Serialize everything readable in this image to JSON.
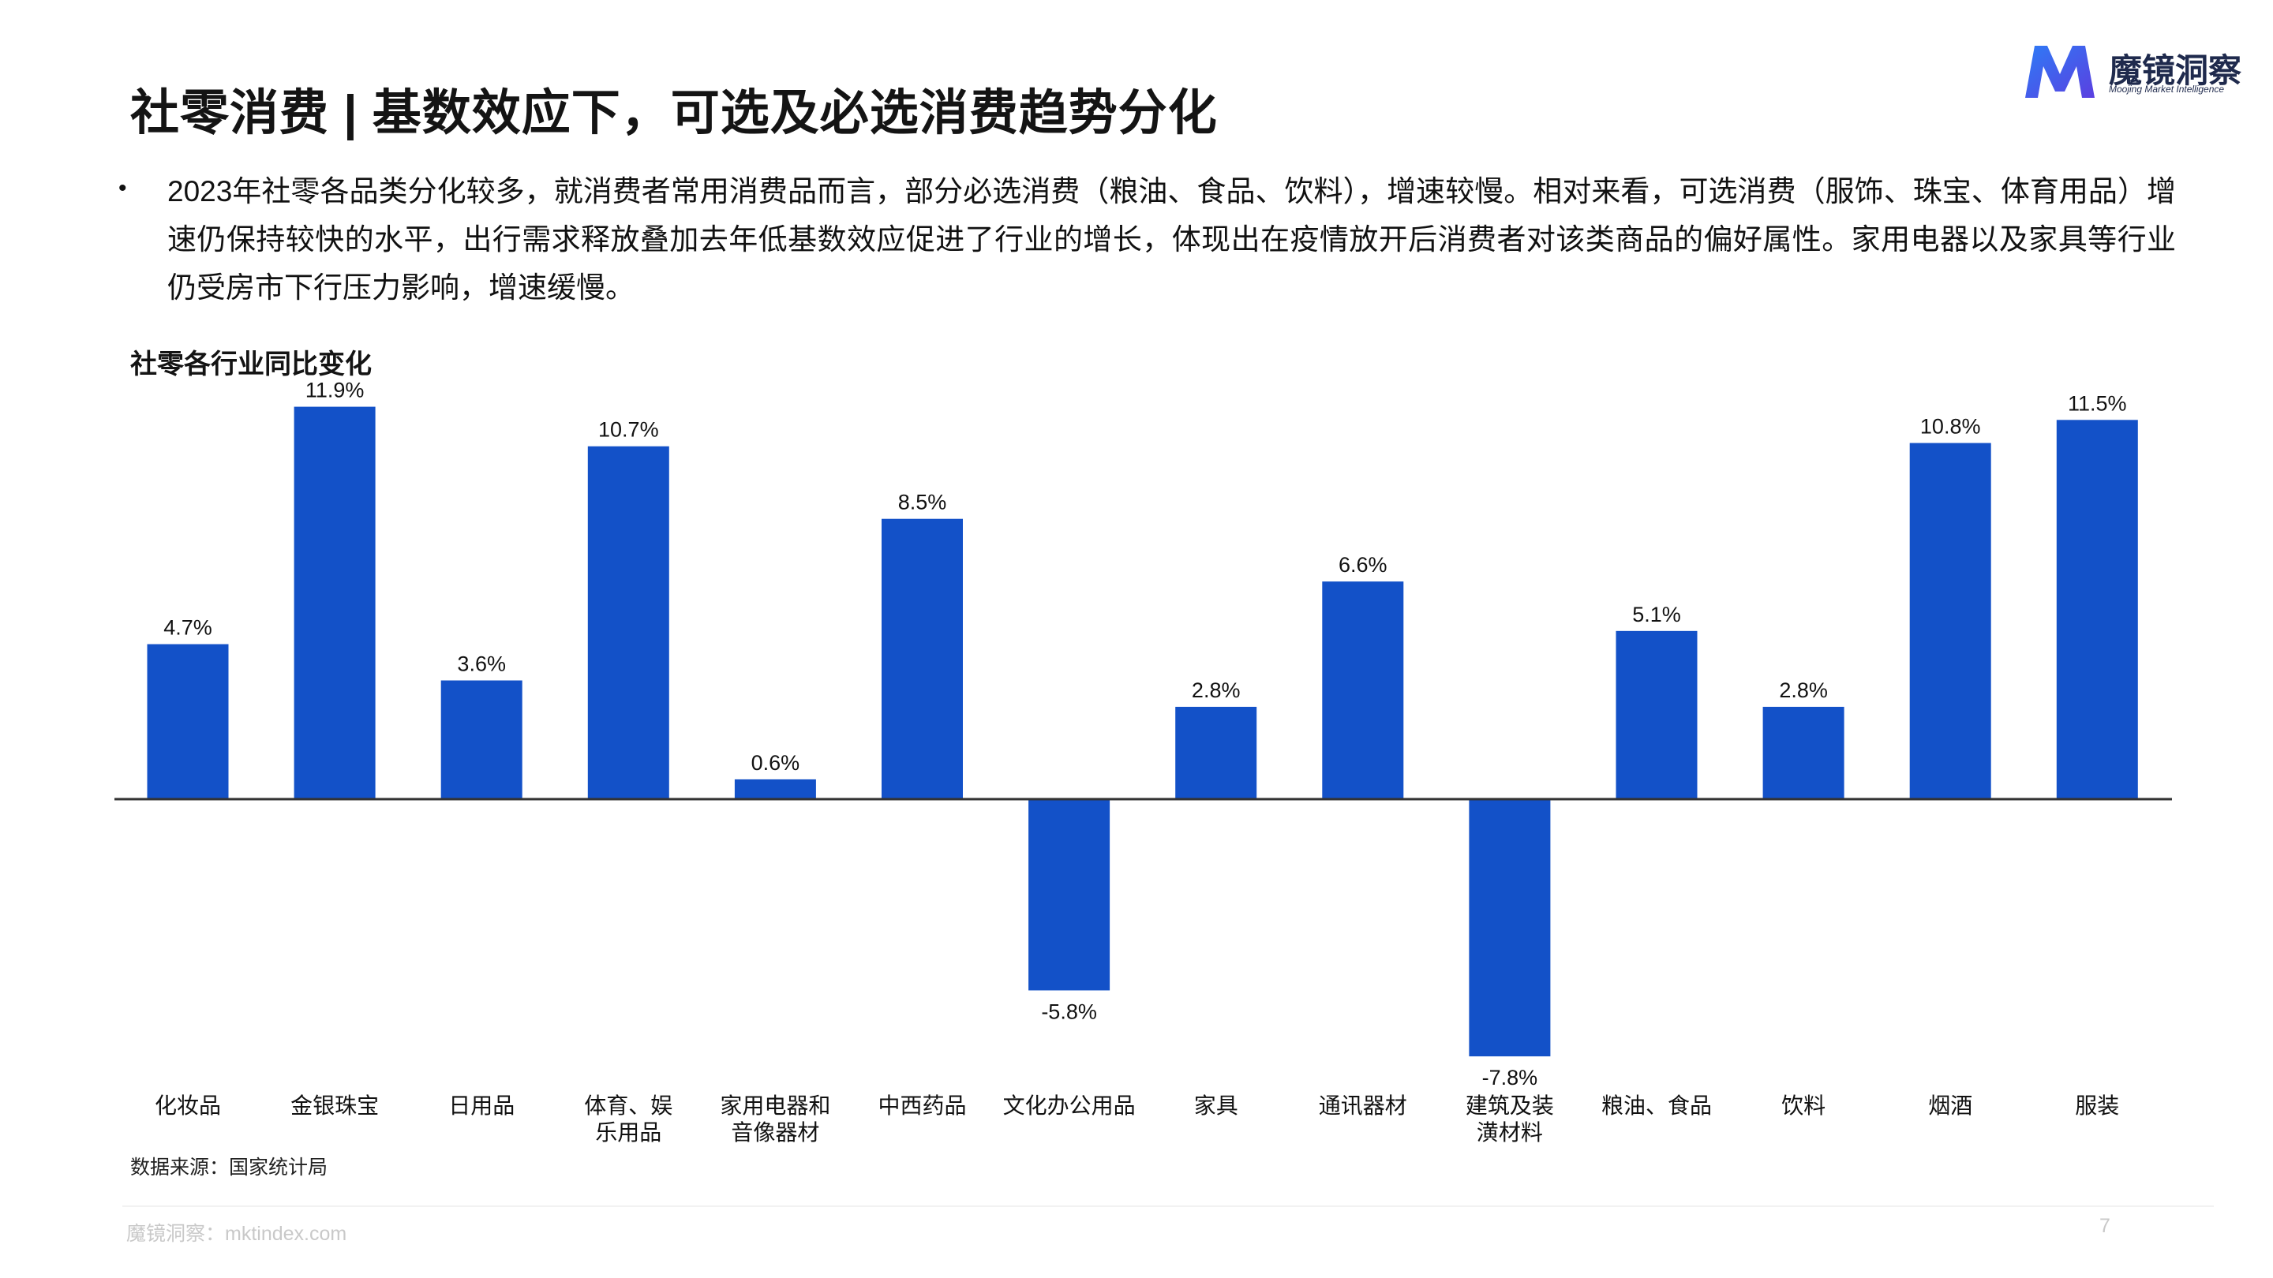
{
  "header": {
    "title": "社零消费 | 基数效应下，可选及必选消费趋势分化",
    "logo_name": "魔镜洞察",
    "logo_sub": "Moojing Market Intelligence"
  },
  "body": {
    "bullet": "•",
    "paragraph": "2023年社零各品类分化较多，就消费者常用消费品而言，部分必选消费（粮油、食品、饮料），增速较慢。相对来看，可选消费（服饰、珠宝、体育用品）增速仍保持较快的水平，出行需求释放叠加去年低基数效应促进了行业的增长，体现出在疫情放开后消费者对该类商品的偏好属性。家用电器以及家具等行业仍受房市下行压力影响，增速缓慢。"
  },
  "chart_data": {
    "type": "bar",
    "title": "社零各行业同比变化",
    "categories": [
      "化妆品",
      "金银珠宝",
      "日用品",
      "体育、娱乐用品",
      "家用电器和音像器材",
      "中西药品",
      "文化办公用品",
      "家具",
      "通讯器材",
      "建筑及装潢材料",
      "粮油、食品",
      "饮料",
      "烟酒",
      "服装"
    ],
    "category_lines": [
      [
        "化妆品"
      ],
      [
        "金银珠宝"
      ],
      [
        "日用品"
      ],
      [
        "体育、娱",
        "乐用品"
      ],
      [
        "家用电器和",
        "音像器材"
      ],
      [
        "中西药品"
      ],
      [
        "文化办公用品"
      ],
      [
        "家具"
      ],
      [
        "通讯器材"
      ],
      [
        "建筑及装",
        "潢材料"
      ],
      [
        "粮油、食品"
      ],
      [
        "饮料"
      ],
      [
        "烟酒"
      ],
      [
        "服装"
      ]
    ],
    "values": [
      4.7,
      11.9,
      3.6,
      10.7,
      0.6,
      8.5,
      -5.8,
      2.8,
      6.6,
      -7.8,
      5.1,
      2.8,
      10.8,
      11.5
    ],
    "labels": [
      "4.7%",
      "11.9%",
      "3.6%",
      "10.7%",
      "0.6%",
      "8.5%",
      "-5.8%",
      "2.8%",
      "6.6%",
      "-7.8%",
      "5.1%",
      "2.8%",
      "10.8%",
      "11.5%"
    ],
    "bar_color": "#1351c8",
    "axis_color": "#333333",
    "grid": false,
    "legend": "none"
  },
  "footer": {
    "source": "数据来源：国家统计局",
    "site": "魔镜洞察：mktindex.com",
    "page": "7"
  }
}
